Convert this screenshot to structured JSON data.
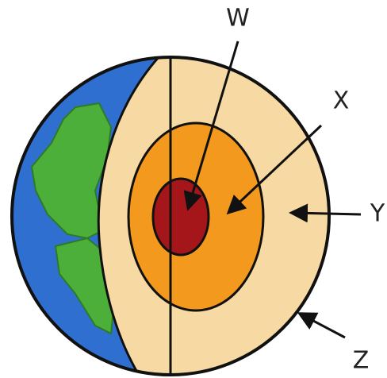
{
  "nodes": [
    {
      "label": "W"
    },
    {
      "label": "X"
    },
    {
      "label": "Y"
    },
    {
      "label": "Z"
    }
  ]
}
